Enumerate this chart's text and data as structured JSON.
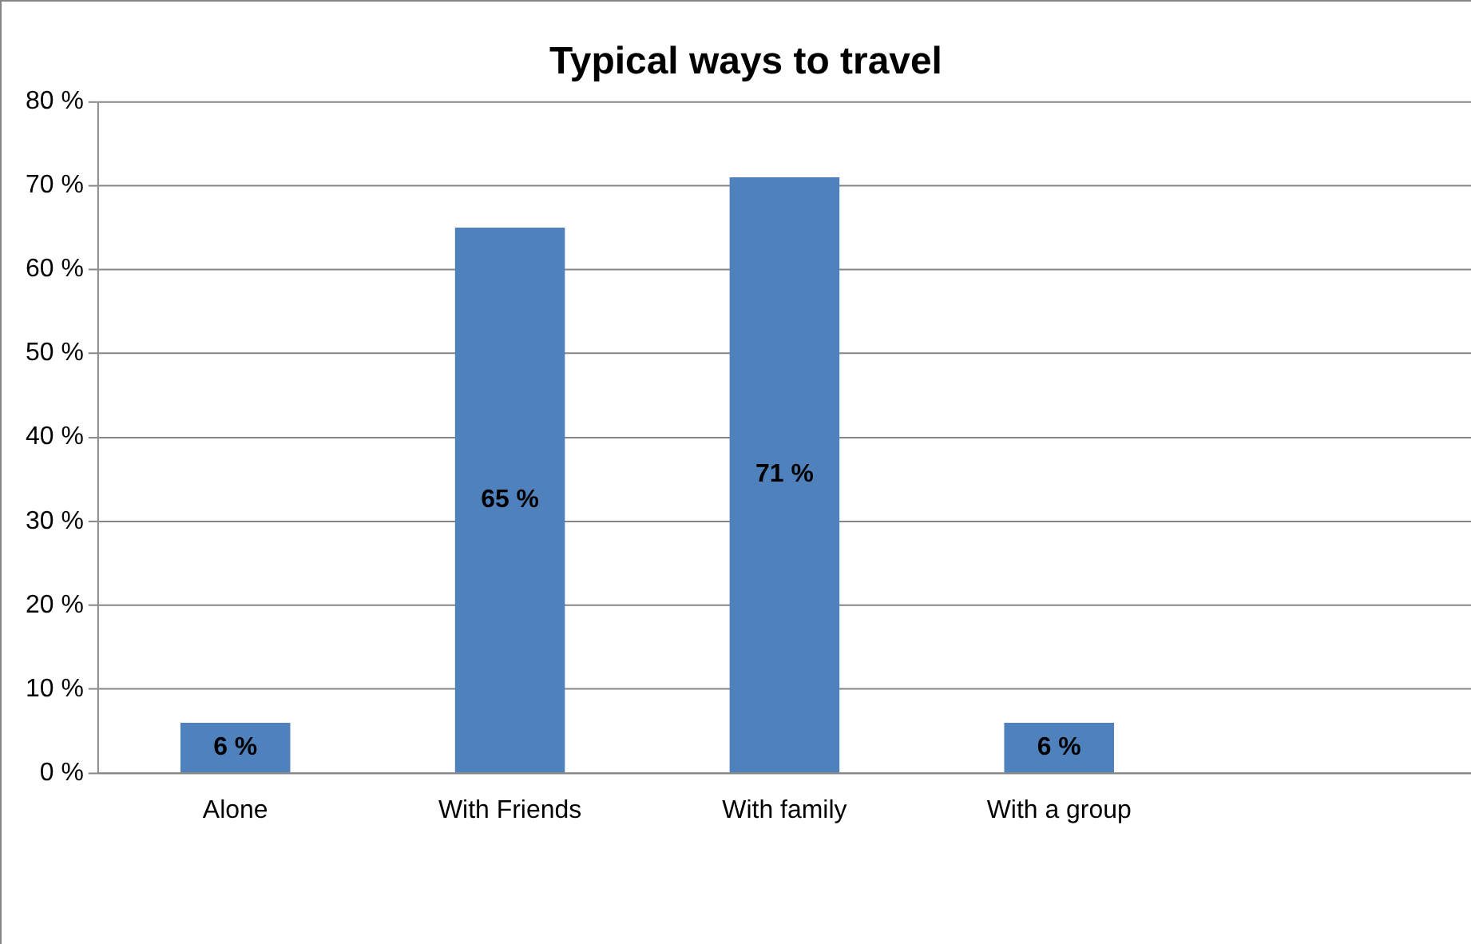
{
  "chart_data": {
    "type": "bar",
    "title": "Typical ways to travel",
    "categories": [
      "Alone",
      "With Friends",
      "With family",
      "With a group",
      null
    ],
    "values": [
      6,
      65,
      71,
      6,
      null
    ],
    "value_labels": [
      "6 %",
      "65 %",
      "71 %",
      "6 %",
      null
    ],
    "color": "#4f81bd",
    "ylim": [
      0,
      80
    ],
    "yticks": [
      {
        "value": 0,
        "label": "0 %"
      },
      {
        "value": 10,
        "label": "10 %"
      },
      {
        "value": 20,
        "label": "20 %"
      },
      {
        "value": 30,
        "label": "30 %"
      },
      {
        "value": 40,
        "label": "40 %"
      },
      {
        "value": 50,
        "label": "50 %"
      },
      {
        "value": 60,
        "label": "60 %"
      },
      {
        "value": 70,
        "label": "70 %"
      },
      {
        "value": 80,
        "label": "80 %"
      }
    ],
    "grid": "y",
    "legend": false
  }
}
